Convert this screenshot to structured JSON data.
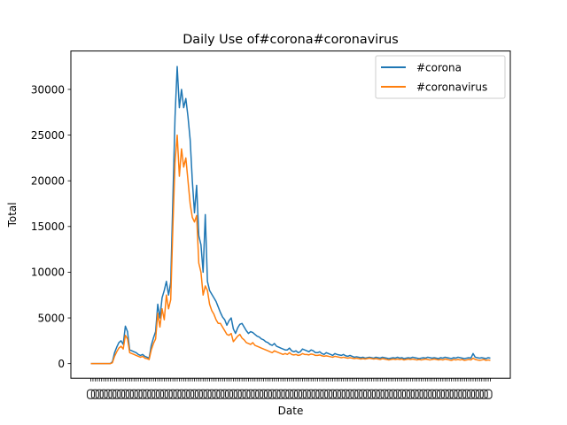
{
  "chart_data": {
    "type": "line",
    "title": "Daily Use of#corona#coronavirus",
    "xlabel": "Date",
    "ylabel": "Total",
    "ylim": [
      -1600,
      34200
    ],
    "yticks": [
      0,
      5000,
      10000,
      15000,
      20000,
      25000,
      30000
    ],
    "x_tick_labels_note": "dense overlapping date tick labels along the x axis (illegible)",
    "legend": {
      "placement": "top-right"
    },
    "grid": false,
    "series": [
      {
        "name": "#corona",
        "color": "#1f77b4",
        "values": [
          0,
          0,
          0,
          0,
          0,
          0,
          0,
          0,
          0,
          0,
          200,
          1200,
          1800,
          2300,
          2500,
          2100,
          4100,
          3500,
          1500,
          1400,
          1300,
          1200,
          1000,
          900,
          1000,
          800,
          700,
          600,
          2000,
          2800,
          3500,
          6500,
          5000,
          7200,
          8000,
          9000,
          7500,
          8900,
          18000,
          27000,
          32500,
          28000,
          30000,
          28000,
          29000,
          27000,
          24500,
          20000,
          16500,
          19500,
          14000,
          13000,
          10000,
          16300,
          9000,
          8000,
          7600,
          7200,
          6800,
          6200,
          5600,
          5100,
          4800,
          4200,
          4700,
          5000,
          3800,
          3300,
          3900,
          4300,
          4400,
          4000,
          3600,
          3300,
          3500,
          3400,
          3200,
          3000,
          2900,
          2700,
          2600,
          2400,
          2300,
          2100,
          2000,
          2200,
          1900,
          1800,
          1700,
          1600,
          1500,
          1500,
          1700,
          1400,
          1300,
          1400,
          1200,
          1300,
          1600,
          1500,
          1400,
          1300,
          1500,
          1400,
          1200,
          1200,
          1300,
          1100,
          1000,
          1200,
          1100,
          1000,
          900,
          1100,
          1000,
          950,
          900,
          1000,
          850,
          800,
          900,
          800,
          700,
          750,
          700,
          650,
          700,
          600,
          650,
          700,
          650,
          600,
          700,
          650,
          600,
          700,
          650,
          600,
          550,
          600,
          650,
          600,
          700,
          600,
          650,
          550,
          600,
          650,
          600,
          700,
          650,
          600,
          550,
          600,
          650,
          600,
          700,
          650,
          600,
          650,
          600,
          550,
          650,
          600,
          700,
          650,
          600,
          550,
          650,
          600,
          700,
          650,
          600,
          550,
          600,
          650,
          600,
          1100,
          700,
          650,
          600,
          650,
          600,
          550,
          650,
          600
        ]
      },
      {
        "name": "#coronavirus",
        "color": "#ff7f0e",
        "values": [
          0,
          0,
          0,
          0,
          0,
          0,
          0,
          0,
          0,
          0,
          100,
          800,
          1300,
          1700,
          1900,
          1600,
          3100,
          2700,
          1200,
          1100,
          1000,
          900,
          800,
          700,
          800,
          600,
          550,
          450,
          1500,
          2200,
          2700,
          5500,
          4000,
          6000,
          4800,
          7500,
          6000,
          7000,
          15000,
          22000,
          25000,
          20500,
          23500,
          21500,
          22500,
          20000,
          17500,
          16000,
          15500,
          16200,
          11000,
          10000,
          7500,
          8500,
          8000,
          6500,
          5800,
          5400,
          4800,
          4400,
          4400,
          4000,
          3600,
          3200,
          3100,
          3300,
          2400,
          2700,
          3000,
          3200,
          2800,
          2600,
          2300,
          2200,
          2100,
          2300,
          2000,
          1900,
          1800,
          1700,
          1600,
          1500,
          1400,
          1300,
          1200,
          1400,
          1300,
          1200,
          1100,
          1000,
          1100,
          1000,
          1200,
          1000,
          950,
          1000,
          900,
          950,
          1100,
          1000,
          1000,
          950,
          1050,
          1000,
          900,
          900,
          950,
          850,
          800,
          850,
          800,
          750,
          700,
          800,
          750,
          700,
          650,
          700,
          650,
          600,
          650,
          600,
          550,
          600,
          550,
          500,
          550,
          500,
          550,
          600,
          550,
          500,
          550,
          500,
          450,
          550,
          500,
          450,
          400,
          450,
          500,
          450,
          500,
          450,
          500,
          400,
          450,
          500,
          450,
          500,
          450,
          400,
          450,
          400,
          450,
          500,
          450,
          400,
          450,
          500,
          450,
          400,
          450,
          400,
          500,
          450,
          400,
          350,
          450,
          400,
          450,
          400,
          450,
          350,
          400,
          450,
          400,
          600,
          450,
          400,
          350,
          400,
          450,
          350,
          400,
          350
        ]
      }
    ]
  }
}
